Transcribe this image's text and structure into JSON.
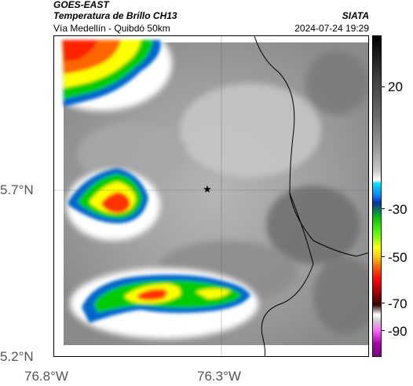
{
  "header": {
    "title": "GOES-EAST",
    "subtitle": "Temperatura de Brillo CH13",
    "source": "SIATA",
    "route": "Vía Medellín - Quibdó 50km",
    "datetime": "2024-07-24 19:29"
  },
  "axes": {
    "lat_labels": [
      "5.7°N",
      "5.2°N"
    ],
    "lon_labels": [
      "76.8°W",
      "76.3°W"
    ]
  },
  "colorbar": {
    "ticks": [
      "20",
      "-30",
      "-50",
      "-70",
      "-90"
    ],
    "range_max": 40,
    "range_min": -95
  },
  "map": {
    "marker": "star-icon",
    "colors": {
      "warm_gray": "#9a9a9a",
      "cold_core": "#ff3300",
      "yellow": "#ffff00",
      "green": "#00cc00",
      "blue": "#0066cc",
      "cyan": "#00ccff"
    }
  }
}
